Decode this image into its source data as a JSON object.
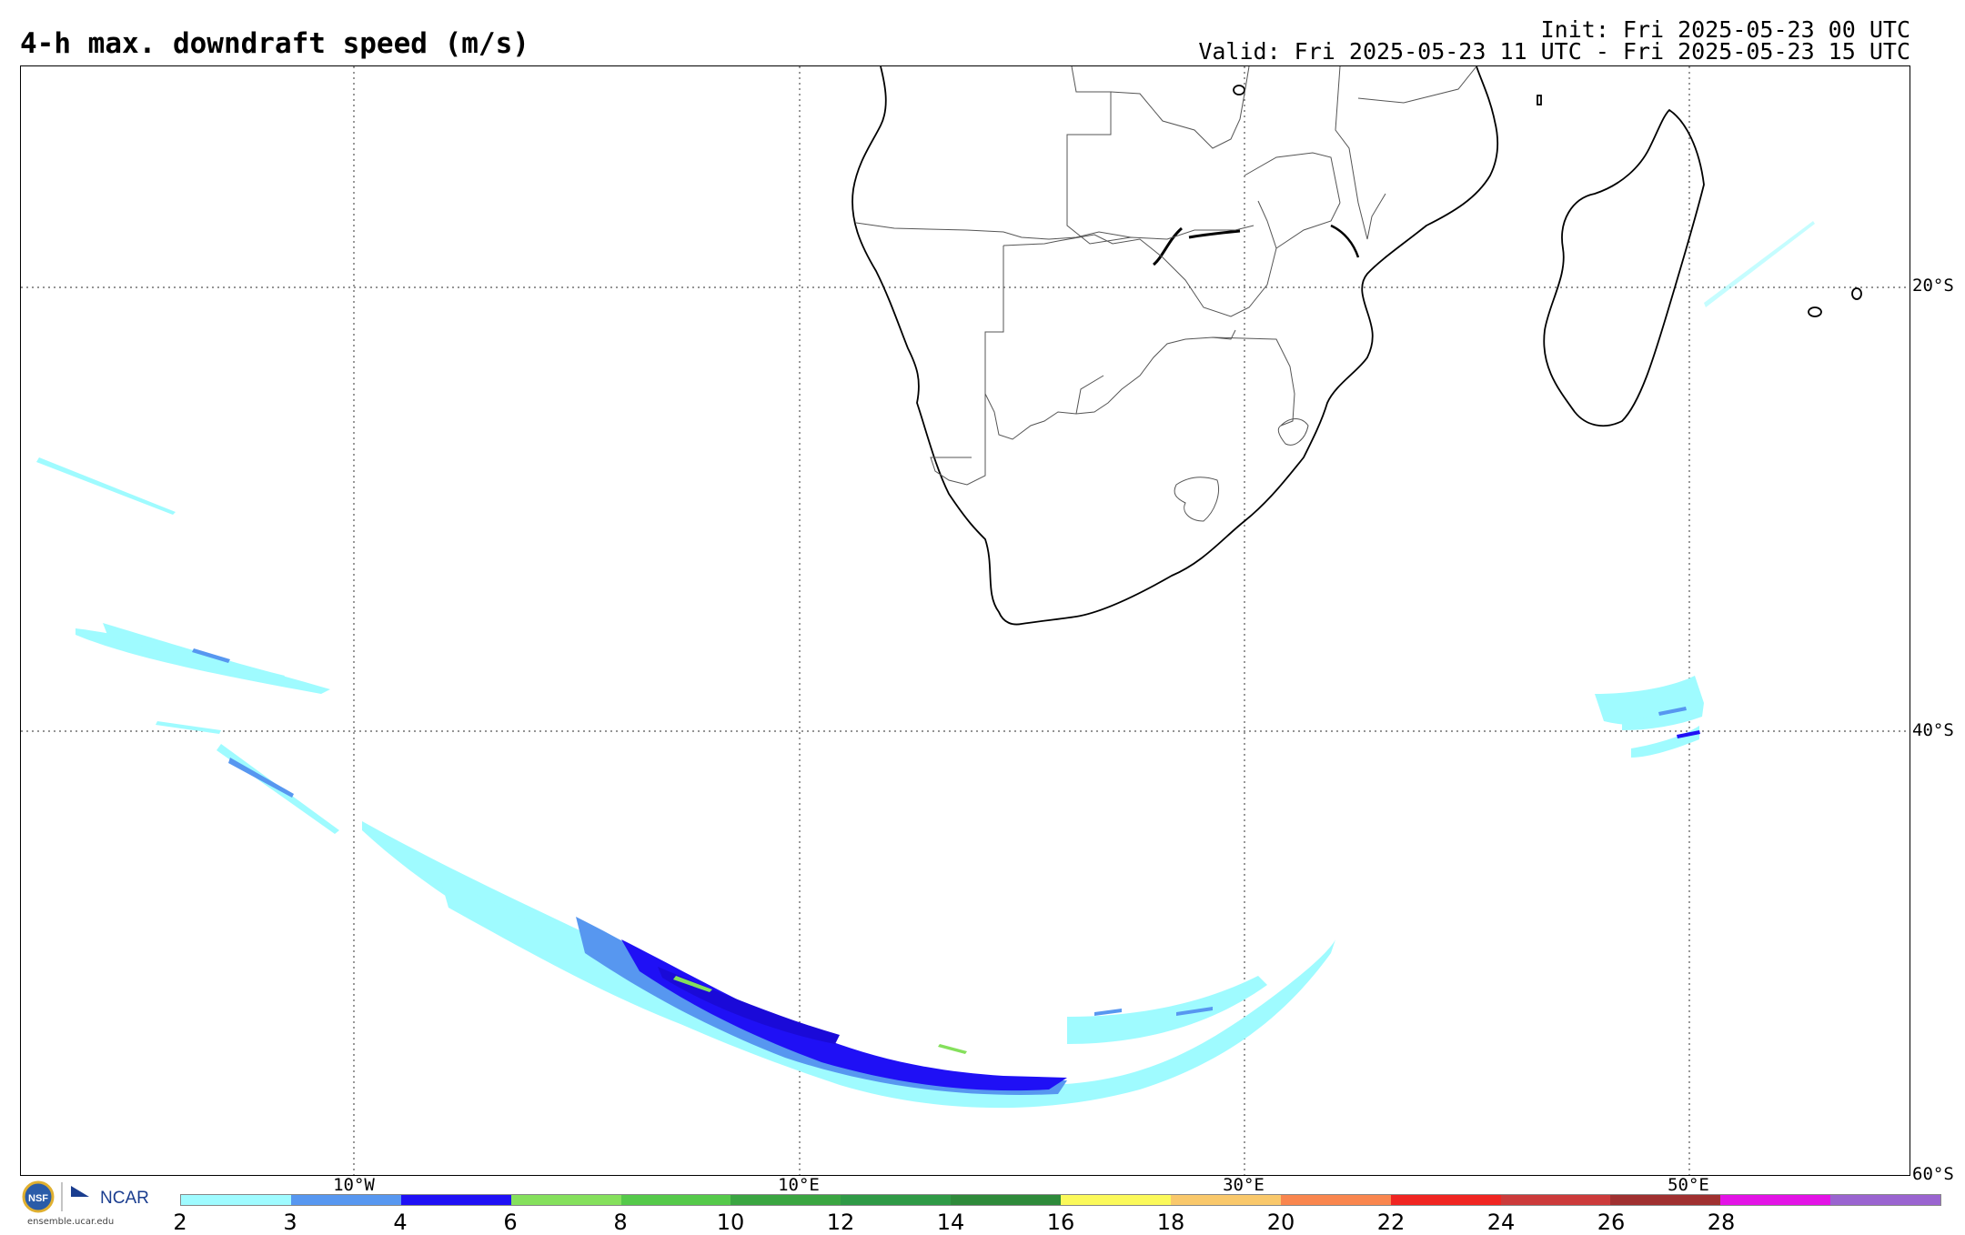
{
  "header": {
    "title": "4-h max. downdraft speed (m/s)",
    "init": "Init: Fri 2025-05-23 00 UTC",
    "valid": "Valid: Fri 2025-05-23 11 UTC - Fri 2025-05-23 15 UTC"
  },
  "grid": {
    "lat_labels": [
      "20°S",
      "40°S",
      "60°S"
    ],
    "lon_labels": [
      "10°W",
      "10°E",
      "30°E",
      "50°E"
    ]
  },
  "logo": {
    "org": "NCAR",
    "url": "ensemble.ucar.edu",
    "seal": "NSF"
  },
  "colorbar": {
    "labels": [
      "2",
      "3",
      "4",
      "6",
      "8",
      "10",
      "12",
      "14",
      "16",
      "18",
      "20",
      "22",
      "24",
      "26",
      "28"
    ],
    "colors": [
      "#9ffbff",
      "#5797f0",
      "#1f10f5",
      "#85e05c",
      "#55c94a",
      "#3aa541",
      "#2f9a46",
      "#2e8a3a",
      "#fbf95a",
      "#f9c86b",
      "#f9864e",
      "#f02521",
      "#cc3a3a",
      "#a03030",
      "#e313e6",
      "#9a64d0"
    ]
  }
}
